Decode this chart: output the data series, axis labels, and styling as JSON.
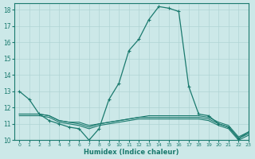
{
  "xlabel": "Humidex (Indice chaleur)",
  "bg_color": "#cce8e8",
  "grid_color": "#b0d4d4",
  "line_color": "#1a7a6e",
  "xlim": [
    -0.5,
    23
  ],
  "ylim": [
    10,
    18.4
  ],
  "yticks": [
    10,
    11,
    12,
    13,
    14,
    15,
    16,
    17,
    18
  ],
  "xticks": [
    0,
    1,
    2,
    3,
    4,
    5,
    6,
    7,
    8,
    9,
    10,
    11,
    12,
    13,
    14,
    15,
    16,
    17,
    18,
    19,
    20,
    21,
    22,
    23
  ],
  "main_series": [
    13.0,
    12.5,
    11.6,
    11.2,
    11.0,
    10.8,
    10.7,
    10.0,
    10.7,
    12.5,
    13.5,
    15.5,
    16.2,
    17.4,
    18.2,
    18.1,
    17.9,
    13.3,
    11.6,
    11.5,
    11.0,
    10.8,
    10.1,
    10.5
  ],
  "flat1": [
    11.6,
    11.6,
    11.6,
    11.5,
    11.2,
    11.1,
    11.1,
    10.9,
    11.0,
    11.1,
    11.2,
    11.3,
    11.4,
    11.5,
    11.5,
    11.5,
    11.5,
    11.5,
    11.5,
    11.4,
    11.1,
    10.9,
    10.2,
    10.5
  ],
  "flat2": [
    11.6,
    11.6,
    11.6,
    11.5,
    11.2,
    11.1,
    11.0,
    10.8,
    11.0,
    11.1,
    11.2,
    11.3,
    11.4,
    11.4,
    11.4,
    11.4,
    11.4,
    11.4,
    11.4,
    11.3,
    11.0,
    10.8,
    10.1,
    10.4
  ],
  "flat3": [
    11.5,
    11.5,
    11.5,
    11.4,
    11.1,
    11.0,
    10.9,
    10.7,
    10.9,
    11.0,
    11.1,
    11.2,
    11.3,
    11.3,
    11.3,
    11.3,
    11.3,
    11.3,
    11.3,
    11.2,
    10.9,
    10.7,
    10.0,
    10.3
  ]
}
